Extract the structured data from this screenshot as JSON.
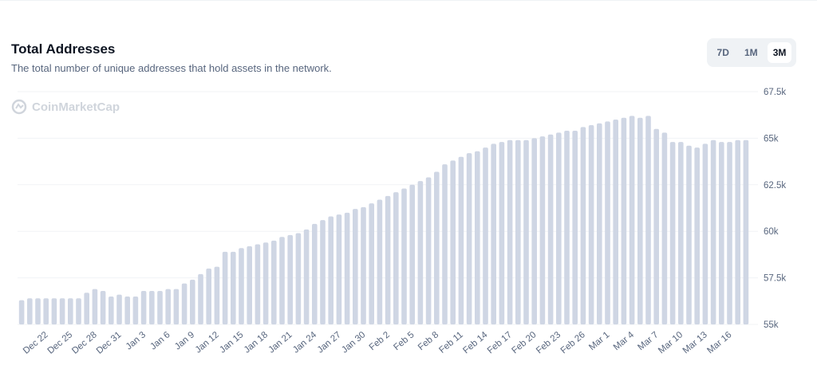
{
  "header": {
    "title": "Total Addresses",
    "subtitle": "The total number of unique addresses that hold assets in the network.",
    "watermark": "CoinMarketCap"
  },
  "range_tabs": {
    "options": [
      "7D",
      "1M",
      "3M"
    ],
    "active": "3M"
  },
  "chart_data": {
    "type": "bar",
    "color": "#cfd6e4",
    "grid": true,
    "categories": [
      null,
      null,
      null,
      "Dec 22",
      null,
      null,
      "Dec 25",
      null,
      null,
      "Dec 28",
      null,
      null,
      "Dec 31",
      null,
      null,
      "Jan 3",
      null,
      null,
      "Jan 6",
      null,
      null,
      "Jan 9",
      null,
      null,
      "Jan 12",
      null,
      null,
      "Jan 15",
      null,
      null,
      "Jan 18",
      null,
      null,
      "Jan 21",
      null,
      null,
      "Jan 24",
      null,
      null,
      "Jan 27",
      null,
      null,
      "Jan 30",
      null,
      null,
      "Feb 2",
      null,
      null,
      "Feb 5",
      null,
      null,
      "Feb 8",
      null,
      null,
      "Feb 11",
      null,
      null,
      "Feb 14",
      null,
      null,
      "Feb 17",
      null,
      null,
      "Feb 20",
      null,
      null,
      "Feb 23",
      null,
      null,
      "Feb 26",
      null,
      null,
      "Mar 1",
      null,
      null,
      "Mar 4",
      null,
      null,
      "Mar 7",
      null,
      null,
      "Mar 10",
      null,
      null,
      "Mar 13",
      null,
      null,
      "Mar 16",
      null,
      null
    ],
    "values": [
      56.3,
      56.4,
      56.4,
      56.4,
      56.4,
      56.4,
      56.4,
      56.4,
      56.7,
      56.9,
      56.8,
      56.5,
      56.6,
      56.5,
      56.5,
      56.8,
      56.8,
      56.8,
      56.9,
      56.9,
      57.2,
      57.4,
      57.7,
      58.0,
      58.1,
      58.9,
      58.9,
      59.1,
      59.2,
      59.3,
      59.4,
      59.5,
      59.7,
      59.8,
      59.9,
      60.1,
      60.4,
      60.6,
      60.8,
      60.9,
      61.0,
      61.2,
      61.3,
      61.5,
      61.7,
      61.9,
      62.1,
      62.3,
      62.5,
      62.7,
      62.9,
      63.2,
      63.6,
      63.8,
      64.0,
      64.2,
      64.3,
      64.5,
      64.7,
      64.8,
      64.9,
      64.9,
      64.9,
      65.0,
      65.1,
      65.2,
      65.3,
      65.4,
      65.4,
      65.6,
      65.7,
      65.8,
      65.9,
      66.0,
      66.1,
      66.2,
      66.1,
      66.2,
      65.5,
      65.3,
      64.8,
      64.8,
      64.6,
      64.5,
      64.7,
      64.9,
      64.8,
      64.8,
      64.9,
      64.9
    ],
    "ylim": [
      55,
      67.5
    ],
    "yticks": [
      {
        "value": 55,
        "label": "55k"
      },
      {
        "value": 57.5,
        "label": "57.5k"
      },
      {
        "value": 60,
        "label": "60k"
      },
      {
        "value": 62.5,
        "label": "62.5k"
      },
      {
        "value": 65,
        "label": "65k"
      },
      {
        "value": 67.5,
        "label": "67.5k"
      }
    ]
  }
}
